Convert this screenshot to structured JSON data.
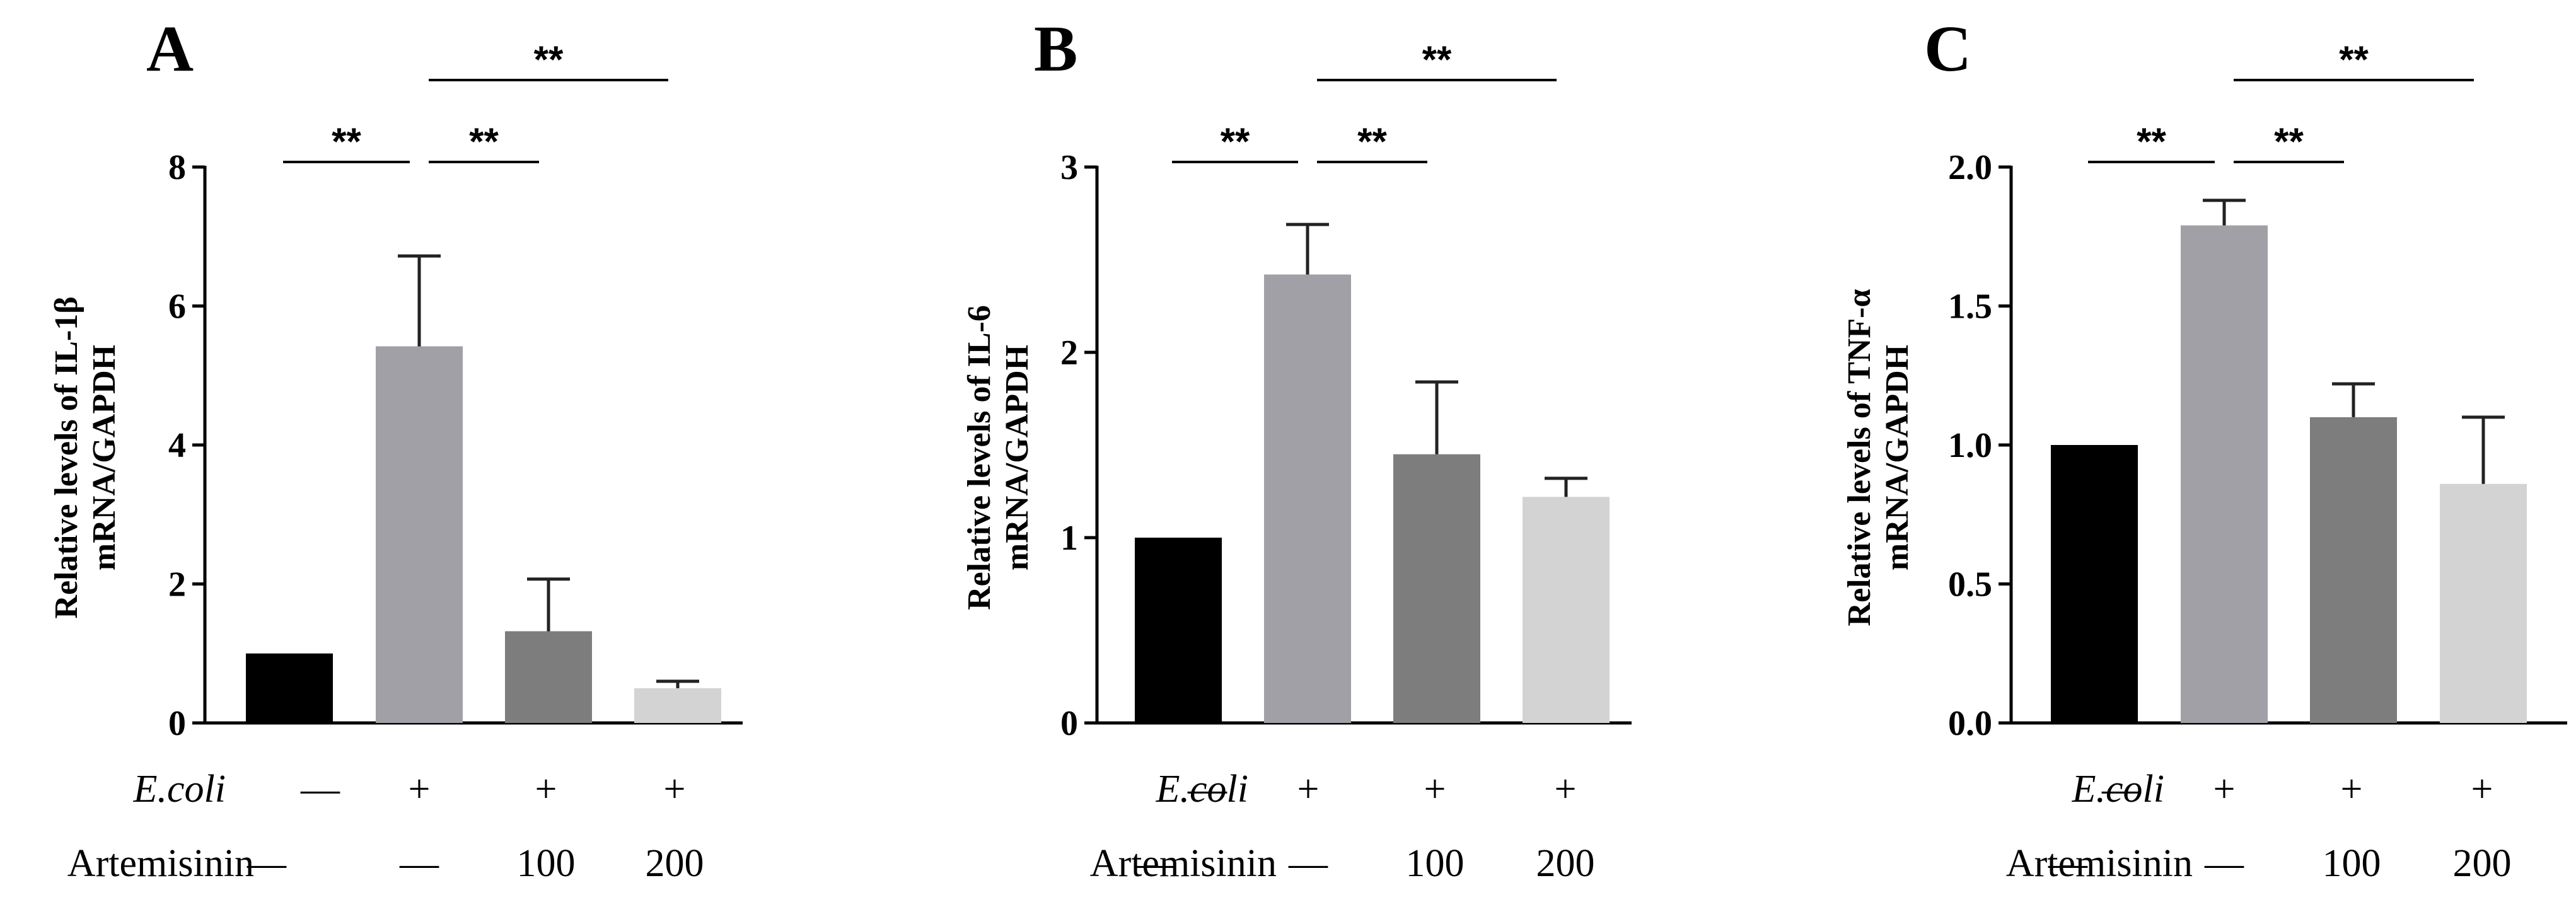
{
  "figure": {
    "ecoli_label": "E.coli",
    "artemisinin_label": "Artemisinin",
    "ecoli_row": [
      "—",
      "+",
      "+",
      "+"
    ],
    "artemisinin_row": [
      "—",
      "—",
      "100",
      "200"
    ],
    "bar_colors": [
      "#000000",
      "#a0a0a6",
      "#7d7d7d",
      "#d3d3d3"
    ]
  },
  "chart_data": [
    {
      "type": "bar",
      "panel": "A",
      "ylabel": "Relative levels of IL-1β mRNA/GAPDH",
      "ylim": [
        0,
        8
      ],
      "yticks": [
        0,
        2,
        4,
        6,
        8
      ],
      "ytick_labels": [
        "0",
        "2",
        "4",
        "6",
        "8"
      ],
      "values": [
        1.0,
        5.42,
        1.32,
        0.5
      ],
      "errors": [
        0.0,
        1.3,
        0.75,
        0.1
      ],
      "significance": [
        {
          "from": 0,
          "to": 1,
          "label": "**",
          "level": 1
        },
        {
          "from": 1,
          "to": 2,
          "label": "**",
          "level": 1
        },
        {
          "from": 1,
          "to": 3,
          "label": "**",
          "level": 2
        }
      ]
    },
    {
      "type": "bar",
      "panel": "B",
      "ylabel": "Relative levels of IL-6 mRNA/GAPDH",
      "ylim": [
        0,
        3
      ],
      "yticks": [
        0,
        1,
        2,
        3
      ],
      "ytick_labels": [
        "0",
        "1",
        "2",
        "3"
      ],
      "values": [
        1.0,
        2.42,
        1.45,
        1.22
      ],
      "errors": [
        0.0,
        0.27,
        0.39,
        0.1
      ],
      "significance": [
        {
          "from": 0,
          "to": 1,
          "label": "**",
          "level": 1
        },
        {
          "from": 1,
          "to": 2,
          "label": "**",
          "level": 1
        },
        {
          "from": 1,
          "to": 3,
          "label": "**",
          "level": 2
        }
      ]
    },
    {
      "type": "bar",
      "panel": "C",
      "ylabel": "Relative levels of TNF-α mRNA/GAPDH",
      "ylim": [
        0,
        2.0
      ],
      "yticks": [
        0,
        0.5,
        1.0,
        1.5,
        2.0
      ],
      "ytick_labels": [
        "0.0",
        "0.5",
        "1.0",
        "1.5",
        "2.0"
      ],
      "values": [
        1.0,
        1.79,
        1.1,
        0.86
      ],
      "errors": [
        0.0,
        0.09,
        0.12,
        0.24
      ],
      "significance": [
        {
          "from": 0,
          "to": 1,
          "label": "**",
          "level": 1
        },
        {
          "from": 1,
          "to": 2,
          "label": "**",
          "level": 1
        },
        {
          "from": 1,
          "to": 3,
          "label": "**",
          "level": 2
        }
      ]
    }
  ]
}
